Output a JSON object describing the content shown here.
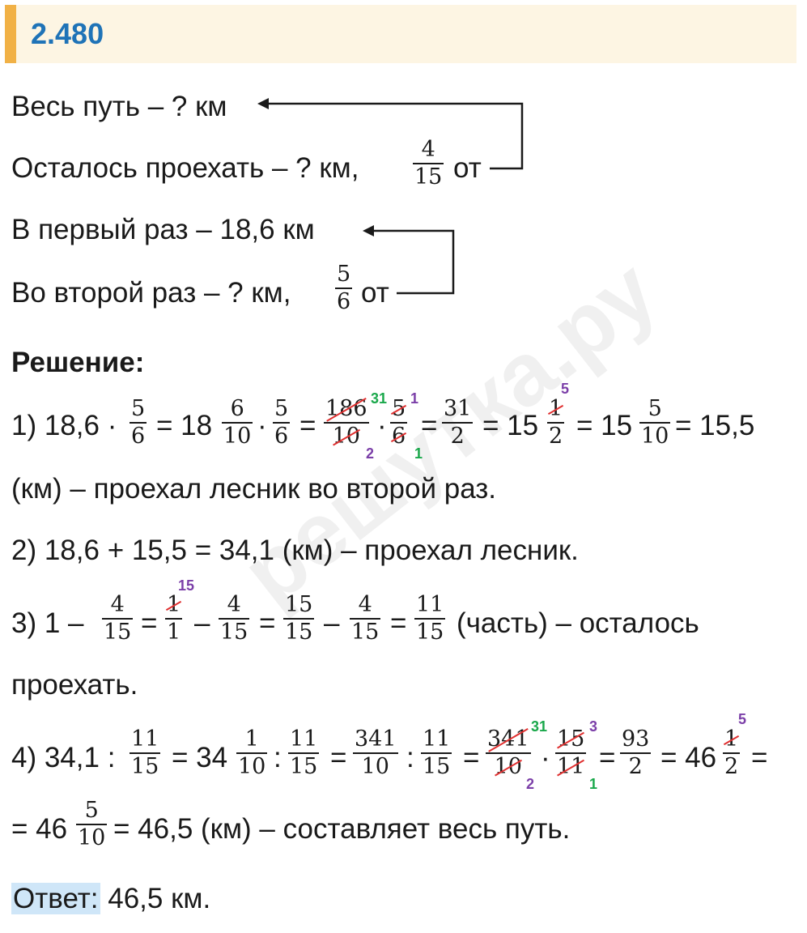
{
  "header": {
    "number": "2.480"
  },
  "condition": {
    "line1": "Весь путь – ? км",
    "line2_text": "Осталось проехать – ? км,",
    "line2_frac": {
      "n": "4",
      "d": "15"
    },
    "line2_tail": "от",
    "line3": "В первый раз – 18,6 км",
    "line4_text": "Во второй раз – ? км,",
    "line4_frac": {
      "n": "5",
      "d": "6"
    },
    "line4_tail": "от"
  },
  "solution": {
    "title": "Решение:",
    "step1_lead": "1) 18,6 ·",
    "step1_tail": "= 15,5",
    "step1_text": "(км) – проехал лесник во второй раз.",
    "step2": "2) 18,6 + 15,5 = 34,1 (км) – проехал лесник.",
    "step3_lead": "3) 1 –",
    "step3_tail": "(часть) – осталось",
    "step3_text": "проехать.",
    "step4_lead": "4) 34,1 :",
    "step4_line2_tail": "= 46,5 (км) – составляет весь путь."
  },
  "answer": {
    "label": "Ответ:",
    "value": "46,5 км."
  },
  "watermark": "решутка.ру"
}
